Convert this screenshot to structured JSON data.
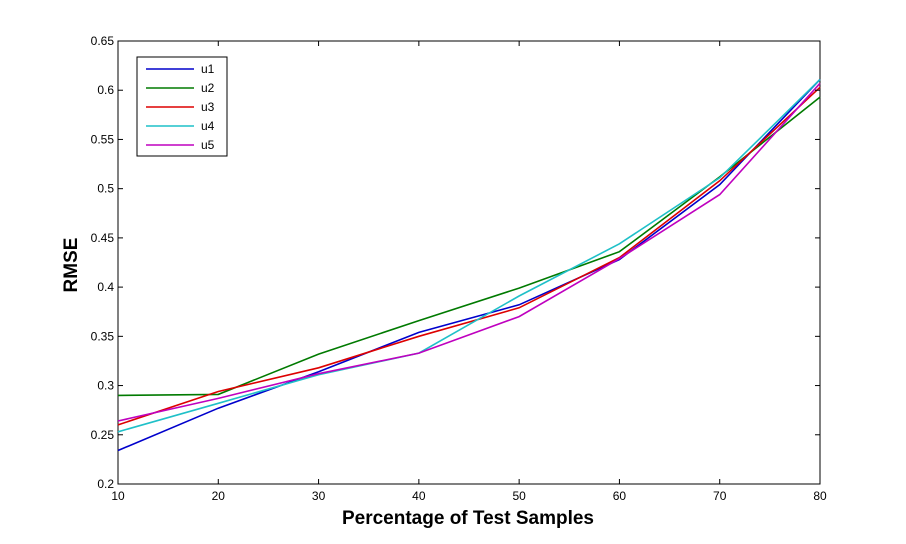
{
  "chart_data": {
    "type": "line",
    "title": "",
    "xlabel": "Percentage of Test Samples",
    "ylabel": "RMSE",
    "xlim": [
      10,
      80
    ],
    "ylim": [
      0.2,
      0.65
    ],
    "x_ticks": [
      10,
      20,
      30,
      40,
      50,
      60,
      70,
      80
    ],
    "y_ticks": [
      0.2,
      0.25,
      0.3,
      0.35,
      0.4,
      0.45,
      0.5,
      0.55,
      0.6,
      0.65
    ],
    "y_tick_labels": [
      "0.2",
      "0.25",
      "0.3",
      "0.35",
      "0.4",
      "0.45",
      "0.5",
      "0.55",
      "0.6",
      "0.65"
    ],
    "x": [
      10,
      20,
      30,
      40,
      50,
      60,
      70,
      80
    ],
    "grid": false,
    "legend_position": "top-left",
    "series": [
      {
        "name": "u1",
        "color": "#0000cc",
        "values": [
          0.234,
          0.277,
          0.314,
          0.354,
          0.382,
          0.428,
          0.504,
          0.611
        ]
      },
      {
        "name": "u2",
        "color": "#007a00",
        "values": [
          0.29,
          0.291,
          0.332,
          0.366,
          0.399,
          0.436,
          0.512,
          0.593
        ]
      },
      {
        "name": "u3",
        "color": "#dd0000",
        "values": [
          0.26,
          0.294,
          0.318,
          0.35,
          0.379,
          0.43,
          0.508,
          0.603
        ]
      },
      {
        "name": "u4",
        "color": "#1fc0c8",
        "values": [
          0.253,
          0.282,
          0.311,
          0.333,
          0.391,
          0.444,
          0.511,
          0.611
        ]
      },
      {
        "name": "u5",
        "color": "#bf00bf",
        "values": [
          0.264,
          0.287,
          0.312,
          0.333,
          0.37,
          0.429,
          0.494,
          0.607
        ]
      }
    ]
  }
}
